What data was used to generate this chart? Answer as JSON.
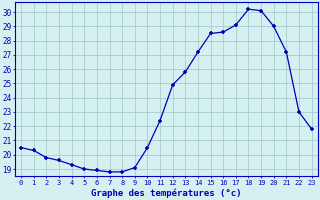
{
  "hours": [
    0,
    1,
    2,
    3,
    4,
    5,
    6,
    7,
    8,
    9,
    10,
    11,
    12,
    13,
    14,
    15,
    16,
    17,
    18,
    19,
    20,
    21,
    22,
    23
  ],
  "temperatures": [
    20.5,
    20.3,
    19.8,
    19.6,
    19.3,
    19.0,
    18.9,
    18.8,
    18.8,
    19.1,
    20.5,
    22.4,
    24.9,
    25.8,
    27.2,
    28.5,
    28.6,
    29.1,
    30.2,
    30.1,
    29.0,
    27.2,
    23.0,
    21.8
  ],
  "line_color": "#0000bb",
  "marker": "+",
  "bg_color": "#d5f0f0",
  "grid_color": "#a8cccc",
  "axis_label_color": "#0000bb",
  "tick_color": "#0000bb",
  "ylabel_ticks": [
    19,
    20,
    21,
    22,
    23,
    24,
    25,
    26,
    27,
    28,
    29,
    30
  ],
  "xlabel": "Graphe des températures (°c)",
  "ylim": [
    18.5,
    30.7
  ],
  "xlim": [
    -0.5,
    23.5
  ],
  "border_color": "#0000bb"
}
